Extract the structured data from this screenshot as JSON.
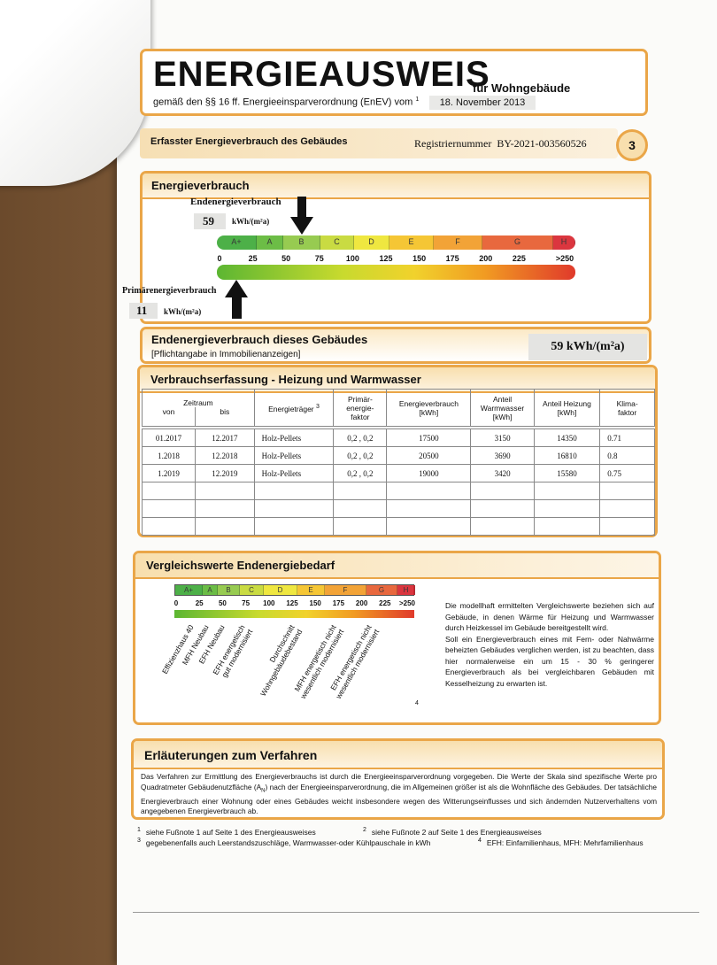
{
  "header": {
    "title": "ENERGIEAUSWEIS",
    "subtitle": "für Wohngebäude",
    "basis": "gemäß den §§ 16 ff. Energieeinsparverordnung (EnEV) vom",
    "basis_note": "1",
    "date": "18. November 2013"
  },
  "bar": {
    "label": "Erfasster Energieverbrauch des Gebäudes",
    "reg_label": "Registriernummer",
    "reg_number": "BY-2021-003560526",
    "page": "3"
  },
  "energieverbrauch": {
    "title": "Energieverbrauch",
    "end_label": "Endenergieverbrauch",
    "end_value": "59",
    "end_unit": "kWh/(m²a)",
    "classes": [
      "A+",
      "A",
      "B",
      "C",
      "D",
      "E",
      "F",
      "G",
      "H"
    ],
    "scale": [
      "0",
      "25",
      "50",
      "75",
      "100",
      "125",
      "150",
      "175",
      "200",
      "225",
      ">250"
    ],
    "primary_label": "Primärenergieverbrauch",
    "primary_value": "11",
    "primary_unit": "kWh/(m²a)"
  },
  "gebaeude": {
    "title": "Endenergieverbrauch dieses Gebäudes",
    "note": "[Pflichtangabe in Immobilienanzeigen]",
    "value": "59 kWh/(m²a)"
  },
  "verbrauch": {
    "title": "Verbrauchserfassung - Heizung und Warmwasser",
    "zeitraum": "Zeitraum",
    "columns": [
      "von",
      "bis",
      "Energieträger",
      "Primär-\nenergie-\nfaktor",
      "Energieverbrauch\n[kWh]",
      "Anteil\nWarmwasser\n[kWh]",
      "Anteil Heizung\n[kWh]",
      "Klima-\nfaktor"
    ],
    "energietraeger_note": "3",
    "rows": [
      [
        "01.2017",
        "12.2017",
        "Holz-Pellets",
        "0,2 , 0,2",
        "17500",
        "3150",
        "14350",
        "0.71"
      ],
      [
        "1.2018",
        "12.2018",
        "Holz-Pellets",
        "0,2 , 0,2",
        "20500",
        "3690",
        "16810",
        "0.8"
      ],
      [
        "1.2019",
        "12.2019",
        "Holz-Pellets",
        "0,2 , 0,2",
        "19000",
        "3420",
        "15580",
        "0.75"
      ]
    ]
  },
  "vergleich": {
    "title": "Vergleichswerte Endenergiebedarf",
    "classes": [
      "A+",
      "A",
      "B",
      "C",
      "D",
      "E",
      "F",
      "G",
      "H"
    ],
    "scale": [
      "0",
      "25",
      "50",
      "75",
      "100",
      "125",
      "150",
      "175",
      "200",
      "225",
      ">250"
    ],
    "references": [
      "Effizienzhaus 40",
      "MFH Neubau",
      "EFH Neubau",
      "EFH energetisch\ngut modernisiert",
      "Durchschnitt\nWohngebäudebestand",
      "MFH energetisch nicht\nwesentlich modernisiert",
      "EFH energetisch nicht\nwesentlich modernisiert"
    ],
    "ref_note": "4",
    "text": [
      "Die modellhaft ermittelten Vergleichswerte beziehen sich auf Gebäude, in denen Wärme für Heizung und Warmwasser durch Heizkessel im Gebäude bereitgestellt wird.",
      "Soll ein Energieverbrauch eines mit Fern- oder Nahwärme beheizten Gebäudes verglichen werden, ist zu beachten, dass hier normalerweise ein um 15 - 30 % geringerer Energieverbrauch als bei vergleichbaren Gebäuden mit Kesselheizung zu erwarten ist."
    ]
  },
  "erlaeuterung": {
    "title": "Erläuterungen zum Verfahren",
    "text_before": "Das Verfahren zur Ermittlung des Energieverbrauchs ist durch die Energieeinsparverordnung vorgegeben. Die Werte der Skala sind spezifische Werte pro Quadratmeter Gebäudenutzfläche (A",
    "text_sub": "N",
    "text_after": ") nach der Energieeinsparverordnung, die im Allgemeinen größer ist als die Wohnfläche des Gebäudes. Der tatsächliche Energieverbrauch einer Wohnung oder eines Gebäudes weicht insbesondere wegen des Witterungseinflusses und sich ändernden Nutzerverhaltens vom angegebenen Energieverbrauch ab."
  },
  "footnotes": [
    {
      "num": "1",
      "text": "siehe Fußnote 1 auf Seite 1 des Energieausweises"
    },
    {
      "num": "2",
      "text": "siehe Fußnote 2 auf Seite 1 des Energieausweises"
    },
    {
      "num": "3",
      "text": "gegebenenfalls auch Leerstandszuschläge, Warmwasser-oder Kühlpauschale in kWh"
    },
    {
      "num": "4",
      "text": "EFH: Einfamilienhaus, MFH: Mehrfamilienhaus"
    }
  ]
}
